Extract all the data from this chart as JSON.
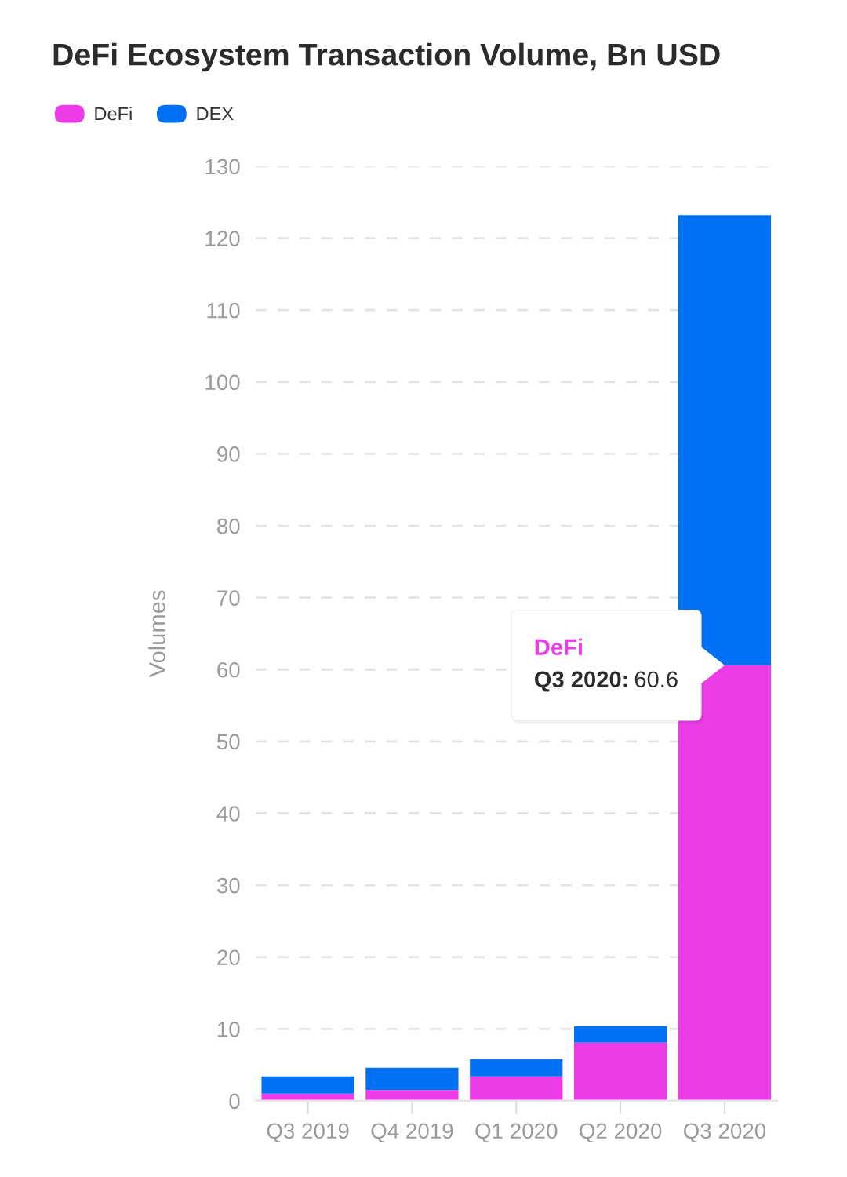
{
  "chart_data": {
    "type": "bar",
    "title": "DeFi Ecosystem Transaction Volume, Bn USD",
    "ylabel": "Volumes",
    "categories": [
      "Q3 2019",
      "Q4 2019",
      "Q1 2020",
      "Q2 2020",
      "Q3 2020"
    ],
    "stacked": true,
    "series": [
      {
        "name": "DeFi",
        "color": "#ec3ce8",
        "values": [
          1.0,
          1.5,
          3.4,
          8.1,
          60.6
        ]
      },
      {
        "name": "DEX",
        "color": "#0071f5",
        "values": [
          2.4,
          3.1,
          2.4,
          2.3,
          62.6
        ]
      }
    ],
    "ylim": [
      0,
      130
    ],
    "yticks": [
      0,
      10,
      20,
      30,
      40,
      50,
      60,
      70,
      80,
      90,
      100,
      110,
      120,
      130
    ],
    "grid": "y",
    "legend": "top left",
    "annotations": [
      "DeFi",
      {
        "text": "Q3 2020: 60.6",
        "x": "Q3 2020",
        "y": 60.6
      }
    ]
  }
}
